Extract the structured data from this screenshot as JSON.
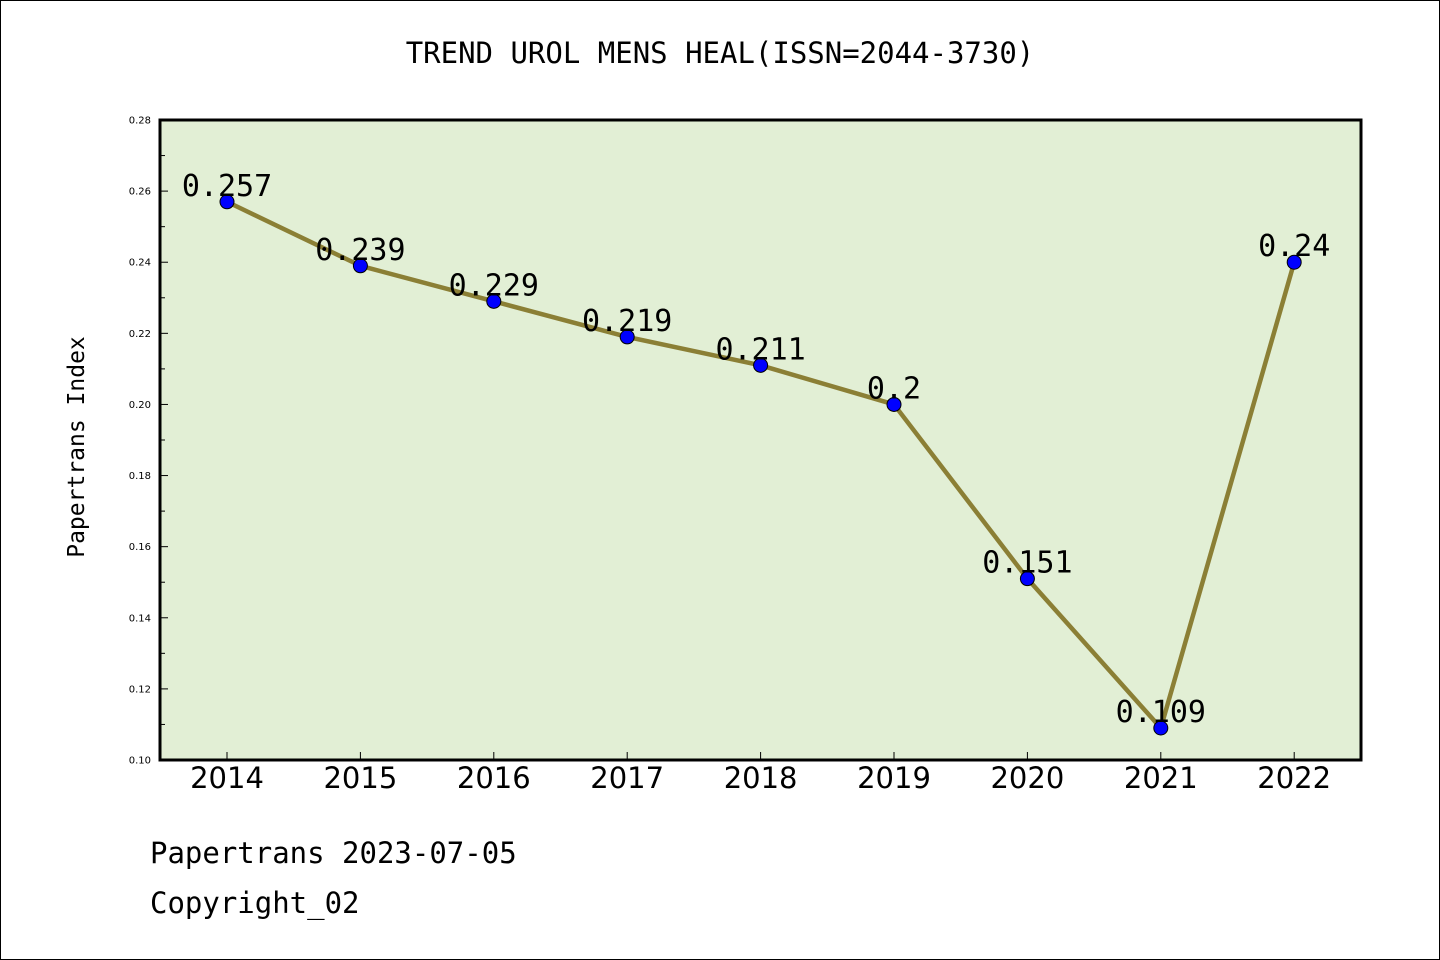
{
  "chart_data": {
    "type": "line",
    "title": "TREND UROL MENS HEAL(ISSN=2044-3730)",
    "xlabel": "",
    "ylabel": "Papertrans Index",
    "categories": [
      "2014",
      "2015",
      "2016",
      "2017",
      "2018",
      "2019",
      "2020",
      "2021",
      "2022"
    ],
    "values": [
      0.257,
      0.239,
      0.229,
      0.219,
      0.211,
      0.2,
      0.151,
      0.109,
      0.24
    ],
    "data_labels": [
      "0.257",
      "0.239",
      "0.229",
      "0.219",
      "0.211",
      "0.2",
      "0.151",
      "0.109",
      "0.24"
    ],
    "ylim": [
      0.1,
      0.28
    ],
    "yticks": [
      "0.10",
      "0.12",
      "0.14",
      "0.16",
      "0.18",
      "0.20",
      "0.22",
      "0.24",
      "0.26",
      "0.28"
    ],
    "grid": false,
    "legend": "none",
    "colors": {
      "plot_background": "#e2efd5",
      "line": "#8b7f35",
      "marker": "#0000ff"
    }
  },
  "footer": {
    "line1": "Papertrans 2023-07-05",
    "line2": "Copyright_02"
  }
}
